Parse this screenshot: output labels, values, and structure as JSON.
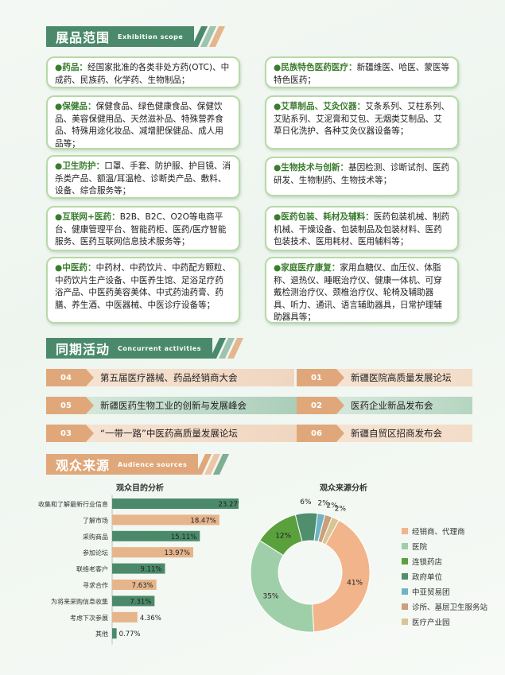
{
  "exhibition": {
    "title_cn": "展品范围",
    "title_en": "Exhibition scope",
    "items": [
      {
        "key": "●药品：",
        "text": "经国家批准的各类非处方药(OTC)、中成药、民族药、化学药、生物制品；"
      },
      {
        "key": "●民族特色医药医疗：",
        "text": "新疆维医、哈医、蒙医等特色医药；"
      },
      {
        "key": "●保健品：",
        "text": "保健食品、绿色健康食品、保健饮品、美容保健用品、天然滋补品、特殊营养食品、特殊用途化妆品、减增肥保健品、成人用品等；"
      },
      {
        "key": "●艾草制品、艾灸仪器：",
        "text": "艾条系列、艾柱系列、艾贴系列、艾泥膏和艾包、无烟类艾制品、艾草日化洗护、各种艾灸仪器设备等；"
      },
      {
        "key": "●卫生防护：",
        "text": "口罩、手套、防护服、护目镜、消杀类产品、额温/耳温枪、诊断类产品、敷料、设备、综合服务等；"
      },
      {
        "key": "●生物技术与创新：",
        "text": "基因检测、诊断试剂、医药研发、生物制药、生物技术等；"
      },
      {
        "key": "●互联网+医药：",
        "text": "B2B、B2C、O2O等电商平台、健康管理平台、智能药柜、医药/医疗智能服务、医药互联网信息技术服务等；"
      },
      {
        "key": "●医药包装、耗材及辅料：",
        "text": "医药包装机械、制药机械、干燥设备、包装制品及包装材料、医药包装技术、医用耗材、医用辅料等；"
      },
      {
        "key": "●中医药：",
        "text": "中药材、中药饮片、中药配方颗粒、中药饮片生产设备、中医养生馆、足浴足疗药浴产品、中医药美容美体、中式药油药膏、药膳、养生酒、中医器械、中医诊疗设备等；"
      },
      {
        "key": "●家庭医疗康复：",
        "text": "家用血糖仪、血压仪、体脂称、退热仪、睡眠治疗仪、健康一体机、可穿戴检测治疗仪、颈椎治疗仪、轮椅及辅助器具、听力、通讯、语言辅助器具，日常护理辅助器具等；"
      }
    ]
  },
  "activities": {
    "title_cn": "同期活动",
    "title_en": "Concurrent activities",
    "items": [
      {
        "num": "04",
        "label": "第五届医疗器械、药品经销商大会"
      },
      {
        "num": "01",
        "label": "新疆医院高质量发展论坛"
      },
      {
        "num": "05",
        "label": "新疆医药生物工业的创新与发展峰会"
      },
      {
        "num": "02",
        "label": "医药企业新品发布会"
      },
      {
        "num": "03",
        "label": "“一带一路”中医药高质量发展论坛"
      },
      {
        "num": "06",
        "label": "新疆自贸区招商发布会"
      }
    ],
    "colors": {
      "green": "#4a8a6a",
      "orange": "#e0a87a",
      "green_light": "#b9d6c2",
      "orange_light": "#f3dcc8"
    }
  },
  "audience": {
    "title_cn": "观众来源",
    "title_en": "Audience sources"
  },
  "chart_data": [
    {
      "type": "bar",
      "title": "观众目的分析",
      "categories": [
        "收集和了解最新行业信息",
        "了解市场",
        "采购商品",
        "参加论坛",
        "联络老客户",
        "寻求合作",
        "为将来采购信息收集",
        "考虑下次参展",
        "其他"
      ],
      "values": [
        23.27,
        18.47,
        15.11,
        13.97,
        9.11,
        7.63,
        7.31,
        4.36,
        0.77
      ],
      "labels": [
        "23.27%",
        "18.47%",
        "15.11%",
        "13.97%",
        "9.11%",
        "7.63%",
        "7.31%",
        "4.36%",
        "0.77%"
      ],
      "colors": [
        "#4a8a6a",
        "#e6b58c",
        "#4a8a6a",
        "#e6b58c",
        "#4a8a6a",
        "#e6b58c",
        "#4a8a6a",
        "#e6b58c",
        "#4a8a6a"
      ],
      "xlim": [
        0,
        28
      ]
    },
    {
      "type": "pie",
      "title": "观众来源分析",
      "labels": [
        "经销商、代理商",
        "医院",
        "连锁药店",
        "政府单位",
        "中亚贸易团",
        "诊所、基层卫生服务站",
        "医疗产业园"
      ],
      "values": [
        41,
        35,
        12,
        6,
        2,
        2,
        2
      ],
      "value_labels": [
        "41%",
        "35%",
        "12%",
        "6%",
        "2%",
        "2%",
        "2%"
      ],
      "colors": [
        "#f2b48a",
        "#9fcfa8",
        "#5aa03c",
        "#4f8f6d",
        "#6fb3c4",
        "#c9a07a",
        "#d8c595"
      ],
      "legend_position": "right"
    }
  ]
}
